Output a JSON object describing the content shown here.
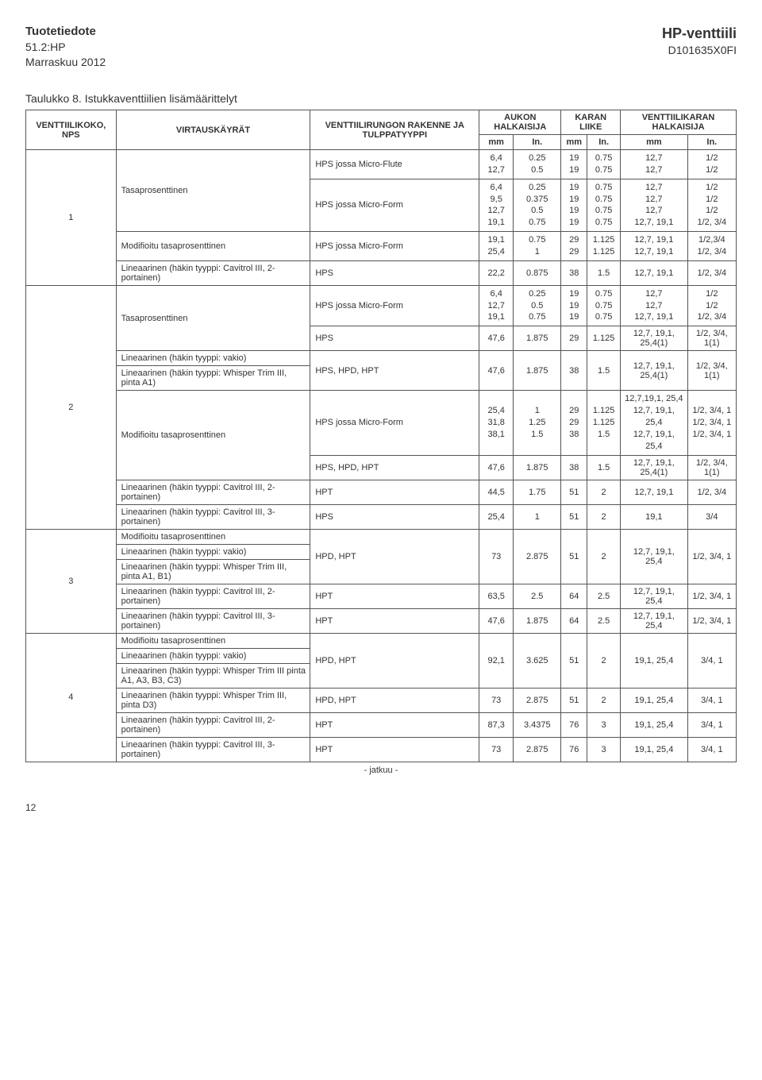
{
  "header": {
    "left_title": "Tuotetiedote",
    "left_line2": "51.2:HP",
    "left_line3": "Marraskuu 2012",
    "right_title": "HP-venttiili",
    "right_line2": "D101635X0FI"
  },
  "table_title": "Taulukko 8. Istukkaventtiilien lisämäärittelyt",
  "th": {
    "c1": "VENTTIILIKOKO, NPS",
    "c2": "VIRTAUSKÄYRÄT",
    "c3": "VENTTIILIRUNGON RAKENNE JA TULPPATYYPPI",
    "c4": "AUKON HALKAISIJA",
    "c5": "KARAN LIIKE",
    "c6": "VENTTIILIKARAN HALKAISIJA",
    "mm": "mm",
    "in": "In."
  },
  "rows": [
    {
      "g": "1",
      "flow": "Tasaprosenttinen",
      "plug": "HPS jossa Micro-Flute",
      "mm": "6,4\n12,7",
      "in": "0.25\n0.5",
      "kmm": "19\n19",
      "kin": "0.75\n0.75",
      "hmm": "12,7\n12,7",
      "hin": "1/2\n1/2"
    },
    {
      "plug": "HPS jossa Micro-Form",
      "mm": "6,4\n9,5\n12,7\n19,1",
      "in": "0.25\n0.375\n0.5\n0.75",
      "kmm": "19\n19\n19\n19",
      "kin": "0.75\n0.75\n0.75\n0.75",
      "hmm": "12,7\n12,7\n12,7\n12,7, 19,1",
      "hin": "1/2\n1/2\n1/2\n1/2, 3/4"
    },
    {
      "flow": "Modifioitu tasaprosenttinen",
      "plug": "HPS jossa Micro-Form",
      "mm": "19,1\n25,4",
      "in": "0.75\n1",
      "kmm": "29\n29",
      "kin": "1.125\n1.125",
      "hmm": "12,7, 19,1\n12,7, 19,1",
      "hin": "1/2,3/4\n1/2, 3/4"
    },
    {
      "flow": "Lineaarinen (häkin tyyppi: Cavitrol III, 2-portainen)",
      "plug": "HPS",
      "mm": "22,2",
      "in": "0.875",
      "kmm": "38",
      "kin": "1.5",
      "hmm": "12,7, 19,1",
      "hin": "1/2, 3/4"
    },
    {
      "g": "2",
      "flow": "Tasaprosenttinen",
      "plug": "HPS jossa Micro-Form",
      "mm": "6,4\n12,7\n19,1",
      "in": "0.25\n0.5\n0.75",
      "kmm": "19\n19\n19",
      "kin": "0.75\n0.75\n0.75",
      "hmm": "12,7\n12,7\n12,7, 19,1",
      "hin": "1/2\n1/2\n1/2, 3/4"
    },
    {
      "plug": "HPS",
      "mm": "47,6",
      "in": "1.875",
      "kmm": "29",
      "kin": "1.125",
      "hmm": "12,7, 19,1, 25,4(1)",
      "hin": "1/2, 3/4, 1(1)"
    },
    {
      "flow": "Lineaarinen (häkin tyyppi: vakio)",
      "plug": "HPS, HPD, HPT",
      "mm": "47,6",
      "in": "1.875",
      "kmm": "38",
      "kin": "1.5",
      "hmm": "12,7, 19,1, 25,4(1)",
      "hin": "1/2, 3/4, 1(1)"
    },
    {
      "flow": "Lineaarinen (häkin tyyppi: Whisper Trim III, pinta A1)"
    },
    {
      "flow": "Modifioitu tasaprosenttinen",
      "plug": "HPS jossa Micro-Form",
      "mm": "25,4\n31,8\n38,1",
      "in": "1\n1.25\n1.5",
      "kmm": "29\n29\n38",
      "kin": "1.125\n1.125\n1.5",
      "hmm": "12,7,19,1, 25,4\n12,7, 19,1, 25,4\n12,7, 19,1, 25,4",
      "hin": "1/2, 3/4, 1\n1/2, 3/4, 1\n1/2, 3/4, 1"
    },
    {
      "plug": "HPS, HPD, HPT",
      "mm": "47,6",
      "in": "1.875",
      "kmm": "38",
      "kin": "1.5",
      "hmm": "12,7, 19,1, 25,4(1)",
      "hin": "1/2, 3/4, 1(1)"
    },
    {
      "flow": "Lineaarinen (häkin tyyppi: Cavitrol III, 2-portainen)",
      "plug": "HPT",
      "mm": "44,5",
      "in": "1.75",
      "kmm": "51",
      "kin": "2",
      "hmm": "12,7, 19,1",
      "hin": "1/2, 3/4"
    },
    {
      "flow": "Lineaarinen (häkin tyyppi: Cavitrol III, 3-portainen)",
      "plug": "HPS",
      "mm": "25,4",
      "in": "1",
      "kmm": "51",
      "kin": "2",
      "hmm": "19,1",
      "hin": "3/4"
    },
    {
      "g": "3",
      "flow": "Modifioitu tasaprosenttinen",
      "plug": "HPD, HPT",
      "mm": "73",
      "in": "2.875",
      "kmm": "51",
      "kin": "2",
      "hmm": "12,7, 19,1, 25,4",
      "hin": "1/2, 3/4, 1"
    },
    {
      "flow": "Lineaarinen (häkin tyyppi: vakio)"
    },
    {
      "flow": "Lineaarinen (häkin tyyppi: Whisper Trim III, pinta A1, B1)"
    },
    {
      "flow": "Lineaarinen (häkin tyyppi: Cavitrol III, 2-portainen)",
      "plug": "HPT",
      "mm": "63,5",
      "in": "2.5",
      "kmm": "64",
      "kin": "2.5",
      "hmm": "12,7, 19,1, 25,4",
      "hin": "1/2, 3/4, 1"
    },
    {
      "flow": "Lineaarinen (häkin tyyppi: Cavitrol III, 3-portainen)",
      "plug": "HPT",
      "mm": "47,6",
      "in": "1.875",
      "kmm": "64",
      "kin": "2.5",
      "hmm": "12,7, 19,1, 25,4",
      "hin": "1/2, 3/4, 1"
    },
    {
      "g": "4",
      "flow": "Modifioitu tasaprosenttinen",
      "plug": "HPD, HPT",
      "mm": "92,1",
      "in": "3.625",
      "kmm": "51",
      "kin": "2",
      "hmm": "19,1, 25,4",
      "hin": "3/4, 1"
    },
    {
      "flow": "Lineaarinen (häkin tyyppi: vakio)"
    },
    {
      "flow": "Lineaarinen (häkin tyyppi: Whisper Trim III pinta A1, A3, B3, C3)"
    },
    {
      "flow": "Lineaarinen (häkin tyyppi: Whisper Trim III, pinta D3)",
      "plug": "HPD, HPT",
      "mm": "73",
      "in": "2.875",
      "kmm": "51",
      "kin": "2",
      "hmm": "19,1, 25,4",
      "hin": "3/4, 1"
    },
    {
      "flow": "Lineaarinen (häkin tyyppi: Cavitrol III, 2-portainen)",
      "plug": "HPT",
      "mm": "87,3",
      "in": "3.4375",
      "kmm": "76",
      "kin": "3",
      "hmm": "19,1, 25,4",
      "hin": "3/4, 1"
    },
    {
      "flow": "Lineaarinen (häkin tyyppi: Cavitrol III, 3-portainen)",
      "plug": "HPT",
      "mm": "73",
      "in": "2.875",
      "kmm": "76",
      "kin": "3",
      "hmm": "19,1, 25,4",
      "hin": "3/4, 1"
    }
  ],
  "footnote": "- jatkuu -",
  "page": "12"
}
